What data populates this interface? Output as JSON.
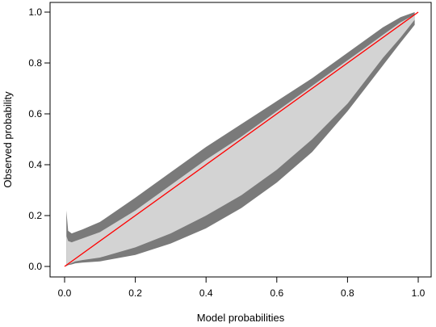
{
  "chart_data": {
    "type": "area",
    "xlabel": "Model probabilities",
    "ylabel": "Observed probability",
    "xlim": [
      0,
      1
    ],
    "ylim": [
      0,
      1
    ],
    "x_ticks": [
      "0.0",
      "0.2",
      "0.4",
      "0.6",
      "0.8",
      "1.0"
    ],
    "y_ticks": [
      "0.0",
      "0.2",
      "0.4",
      "0.6",
      "0.8",
      "1.0"
    ],
    "grid": false,
    "legend": "none",
    "x": [
      0.005,
      0.01,
      0.02,
      0.03,
      0.05,
      0.1,
      0.2,
      0.3,
      0.4,
      0.5,
      0.6,
      0.7,
      0.8,
      0.85,
      0.9,
      0.95,
      0.99
    ],
    "series": [
      {
        "role": "outer-band",
        "color": "#7a7a7a",
        "upper": [
          0.22,
          0.14,
          0.13,
          0.135,
          0.145,
          0.175,
          0.27,
          0.37,
          0.47,
          0.56,
          0.65,
          0.74,
          0.84,
          0.89,
          0.94,
          0.98,
          1.0
        ],
        "lower": [
          0.0,
          0.005,
          0.008,
          0.012,
          0.015,
          0.02,
          0.045,
          0.09,
          0.15,
          0.23,
          0.33,
          0.45,
          0.61,
          0.7,
          0.79,
          0.88,
          0.95
        ]
      },
      {
        "role": "inner-band",
        "color": "#d3d3d3",
        "upper": [
          0.12,
          0.1,
          0.095,
          0.1,
          0.11,
          0.135,
          0.22,
          0.32,
          0.42,
          0.51,
          0.61,
          0.71,
          0.81,
          0.86,
          0.91,
          0.96,
          0.99
        ],
        "lower": [
          0.0,
          0.008,
          0.014,
          0.02,
          0.025,
          0.035,
          0.075,
          0.13,
          0.2,
          0.28,
          0.38,
          0.5,
          0.64,
          0.73,
          0.82,
          0.9,
          0.97
        ]
      },
      {
        "role": "diagonal",
        "color": "#ff0000",
        "x": [
          0,
          1
        ],
        "values": [
          0,
          1
        ]
      }
    ]
  }
}
